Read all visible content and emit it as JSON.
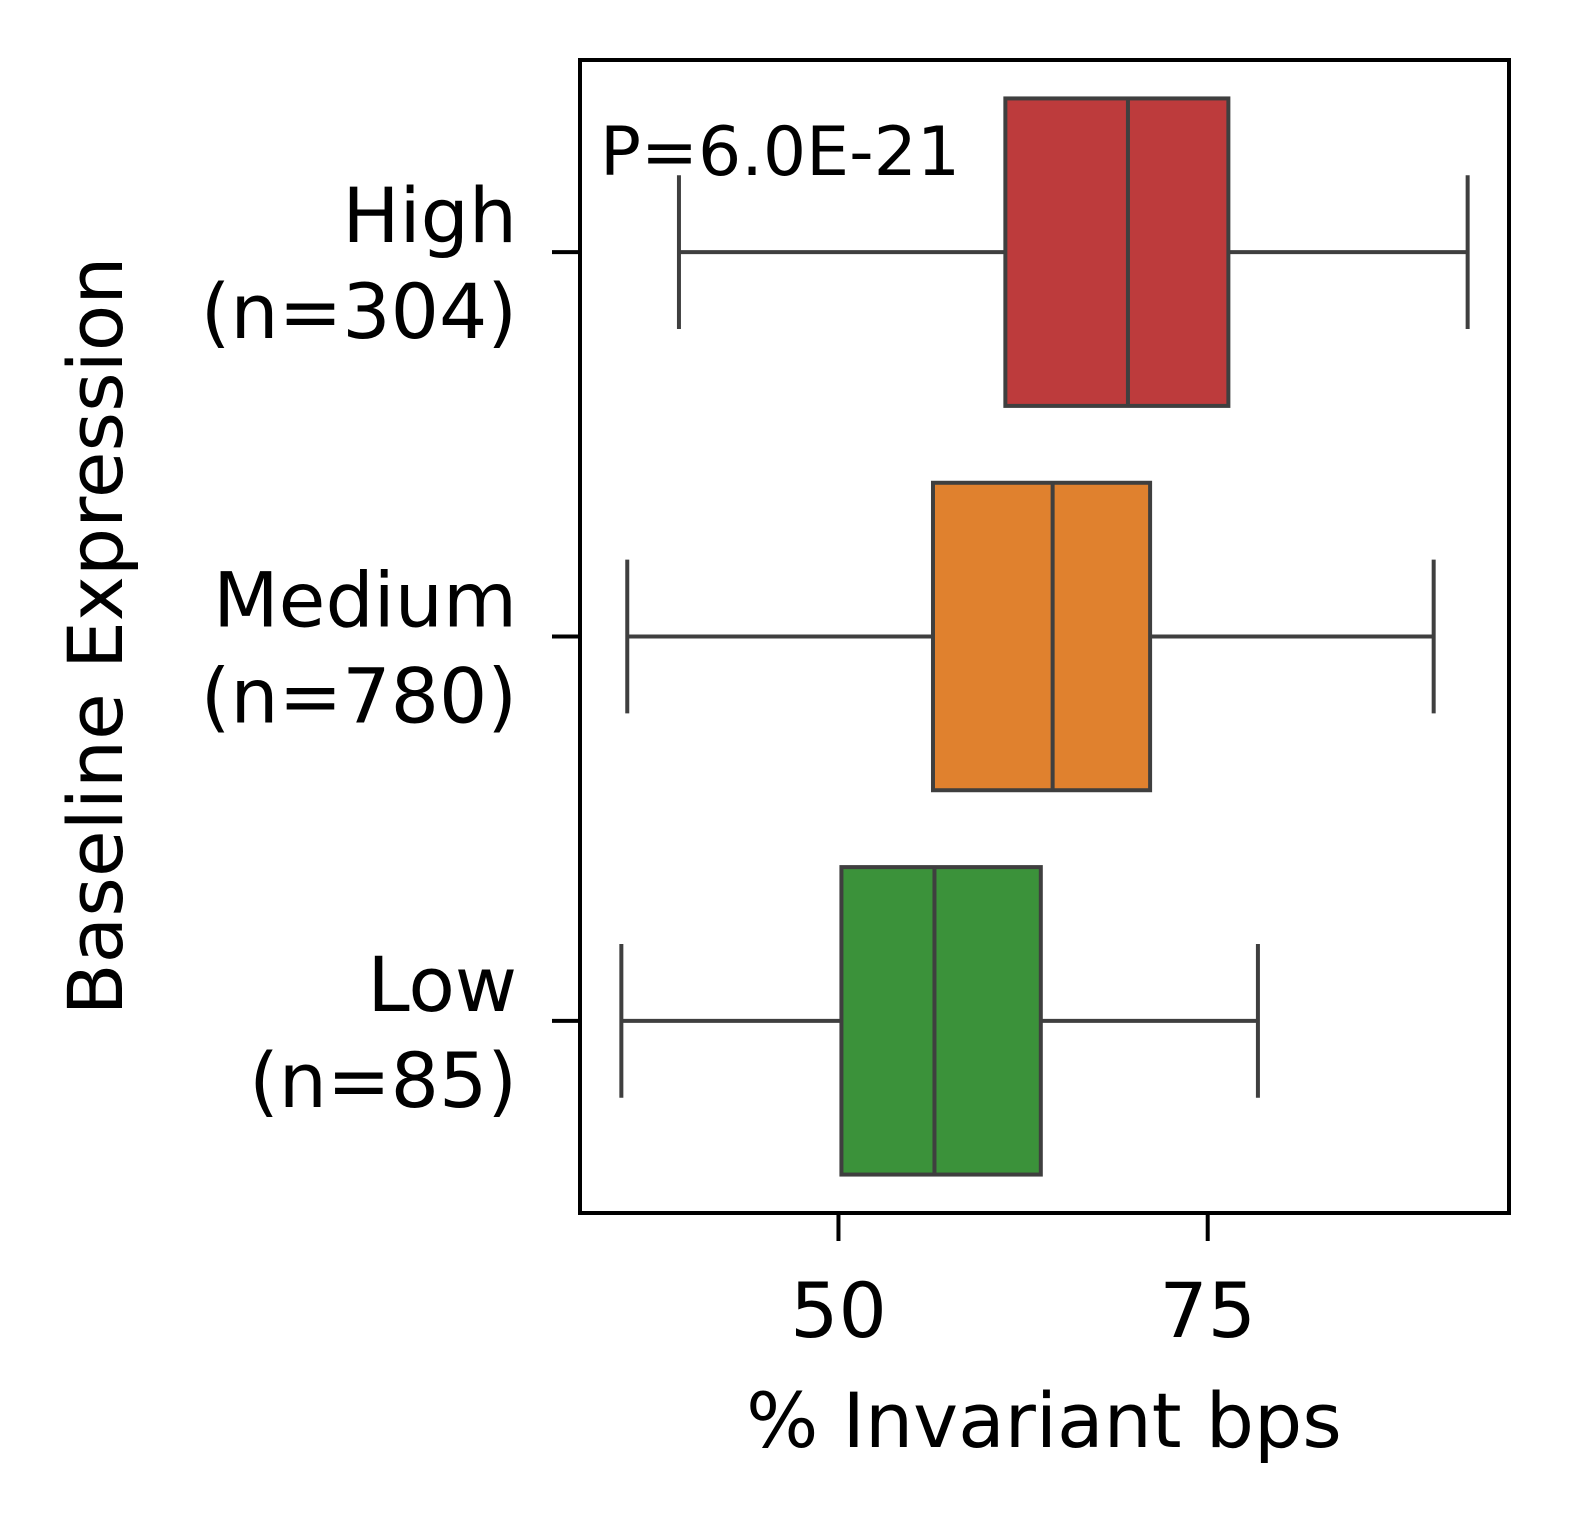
{
  "chart_data": {
    "type": "boxplot",
    "orientation": "horizontal",
    "xlabel": "% Invariant bps",
    "ylabel": "Baseline Expression",
    "xlim": [
      32.5,
      95.4
    ],
    "xticks": [
      50,
      75
    ],
    "xtick_labels": [
      "50",
      "75"
    ],
    "grid": false,
    "annotation": "P=6.0E-21",
    "categories": [
      {
        "name": "High",
        "n_label": "(n=304)",
        "color": "#bd3b3c",
        "whisker_low": 39.2,
        "q1": 61.3,
        "median": 69.6,
        "q3": 76.4,
        "whisker_high": 92.6
      },
      {
        "name": "Medium",
        "n_label": "(n=780)",
        "color": "#e0812e",
        "whisker_low": 35.7,
        "q1": 56.4,
        "median": 64.5,
        "q3": 71.1,
        "whisker_high": 90.3
      },
      {
        "name": "Low",
        "n_label": "(n=85)",
        "color": "#3b923a",
        "whisker_low": 35.3,
        "q1": 50.2,
        "median": 56.5,
        "q3": 63.7,
        "whisker_high": 78.4
      }
    ]
  }
}
